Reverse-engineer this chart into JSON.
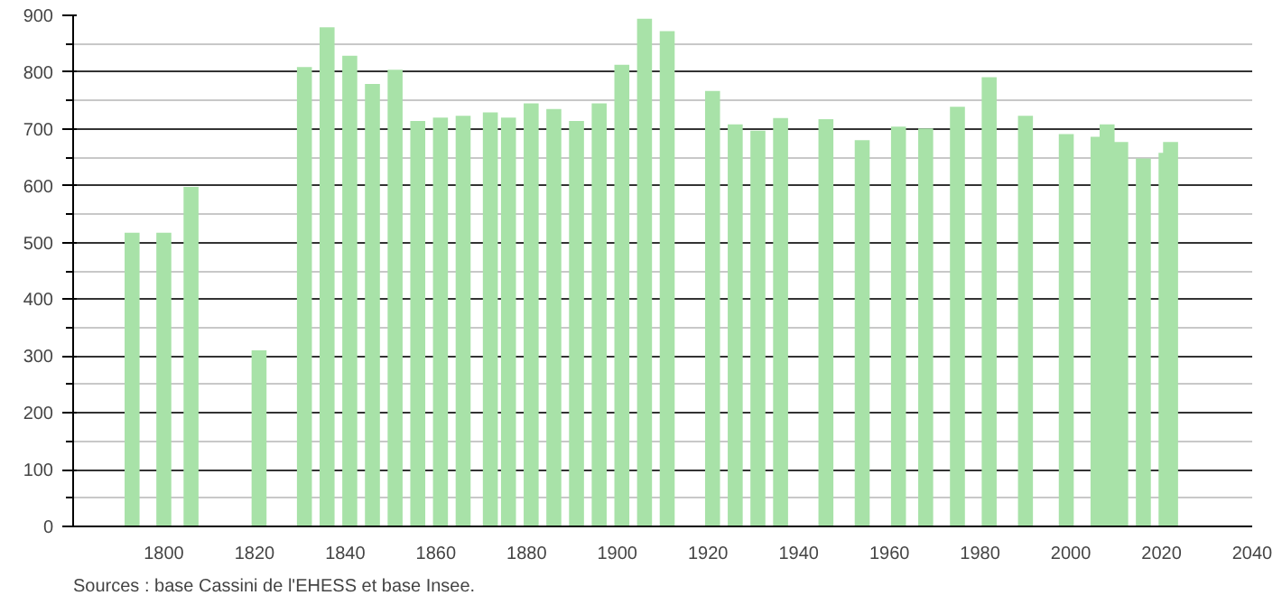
{
  "chart_data": {
    "type": "bar",
    "x": [
      1793,
      1800,
      1806,
      1821,
      1831,
      1836,
      1841,
      1846,
      1851,
      1856,
      1861,
      1866,
      1872,
      1876,
      1881,
      1886,
      1891,
      1896,
      1901,
      1906,
      1911,
      1921,
      1926,
      1931,
      1936,
      1946,
      1954,
      1962,
      1968,
      1975,
      1982,
      1990,
      1999,
      2006,
      2008,
      2011,
      2016,
      2021,
      2022
    ],
    "values": [
      517,
      517,
      598,
      310,
      809,
      879,
      829,
      779,
      804,
      714,
      720,
      723,
      729,
      720,
      745,
      735,
      714,
      745,
      813,
      894,
      872,
      767,
      708,
      697,
      719,
      717,
      680,
      704,
      701,
      739,
      791,
      723,
      691,
      686,
      708,
      677,
      648,
      658,
      677
    ],
    "color": "#a8e2a8",
    "xlim": [
      1780,
      2040
    ],
    "xticks": [
      1800,
      1820,
      1840,
      1860,
      1880,
      1900,
      1920,
      1940,
      1960,
      1980,
      2000,
      2020,
      2040
    ],
    "ylim": [
      0,
      900
    ],
    "yticks": [
      0,
      100,
      200,
      300,
      400,
      500,
      600,
      700,
      800,
      900
    ],
    "grid": "y",
    "annotations": [
      "Sources : base Cassini de l'EHESS et base Insee."
    ]
  }
}
